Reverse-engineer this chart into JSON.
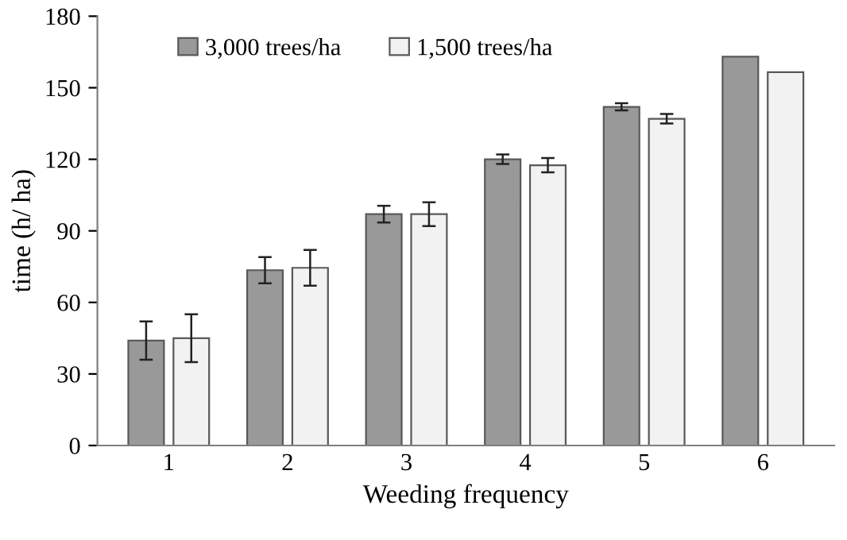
{
  "chart_data": {
    "type": "bar",
    "xlabel": "Weeding frequency",
    "ylabel": "time (h/ ha)",
    "categories": [
      "1",
      "2",
      "3",
      "4",
      "5",
      "6"
    ],
    "series": [
      {
        "name": "3,000 trees/ha",
        "color": "#999999",
        "values": [
          44,
          73.5,
          97,
          120,
          142,
          163
        ],
        "errors": [
          8,
          5.5,
          3.5,
          2,
          1.5,
          null
        ]
      },
      {
        "name": "1,500 trees/ha",
        "color": "#f2f2f2",
        "values": [
          45,
          74.5,
          97,
          117.5,
          137,
          156.5
        ],
        "errors": [
          10,
          7.5,
          5,
          3,
          2,
          null
        ]
      }
    ],
    "ylim": [
      0,
      180
    ],
    "yticks": [
      0,
      30,
      60,
      90,
      120,
      150,
      180
    ],
    "grid": false,
    "legend": "top left"
  }
}
